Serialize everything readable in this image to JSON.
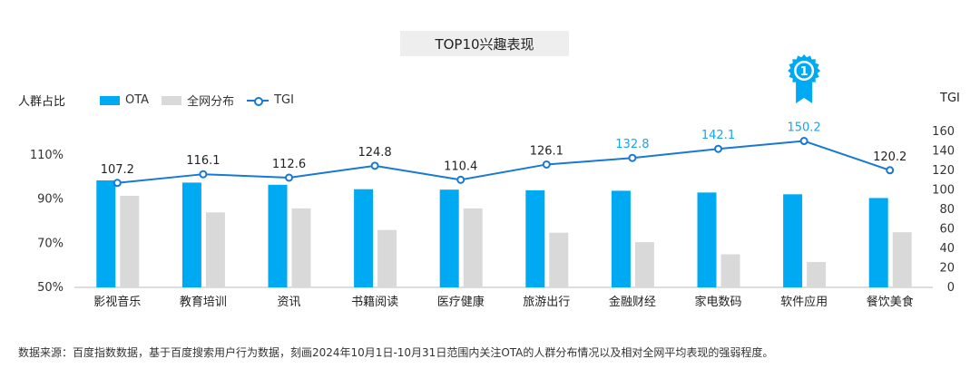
{
  "chart_data": {
    "type": "bar",
    "title": "TOP10兴趣表现",
    "categories": [
      "影视音乐",
      "教育培训",
      "资讯",
      "书籍阅读",
      "医疗健康",
      "旅游出行",
      "金融财经",
      "家电数码",
      "软件应用",
      "餐饮美食"
    ],
    "series": [
      {
        "name": "OTA",
        "type": "bar",
        "axis": "left",
        "values": [
          98.5,
          97.5,
          96.5,
          94.5,
          94.3,
          94.0,
          93.8,
          93.0,
          92.2,
          90.5
        ]
      },
      {
        "name": "全网分布",
        "type": "bar",
        "axis": "left",
        "values": [
          91.5,
          84.0,
          85.8,
          76.0,
          85.8,
          74.8,
          70.5,
          65.0,
          61.5,
          75.0
        ]
      },
      {
        "name": "TGI",
        "type": "line",
        "axis": "right",
        "values": [
          107.2,
          116.1,
          112.6,
          124.8,
          110.4,
          126.1,
          132.8,
          142.1,
          150.2,
          120.2
        ]
      }
    ],
    "tgi_labels": [
      "107.2",
      "116.1",
      "112.6",
      "124.8",
      "110.4",
      "126.1",
      "132.8",
      "142.1",
      "150.2",
      "120.2"
    ],
    "highlight_indices": [
      6,
      7,
      8
    ],
    "top_rank_index": 8,
    "top_rank_badge": "1",
    "ylabel": "人群占比",
    "ylabel_right": "TGI",
    "ylim": [
      50,
      115
    ],
    "yticks": [
      50,
      70,
      90,
      110
    ],
    "ytick_labels": [
      "50%",
      "70%",
      "90%",
      "110%"
    ],
    "ylim_right": [
      0,
      160
    ],
    "yticks_right": [
      0,
      20,
      40,
      60,
      80,
      100,
      120,
      140,
      160
    ],
    "yticks_right_labels": [
      "0",
      "20",
      "40",
      "60",
      "80",
      "100",
      "120",
      "140",
      "160"
    ],
    "legend": [
      "OTA",
      "全网分布",
      "TGI"
    ],
    "legend_position": "top-left",
    "grid": false
  },
  "colors": {
    "ota": "#00aaf2",
    "overall": "#d9d9d9",
    "tgi_line": "#1778d6",
    "highlight_label": "#1aa3f0",
    "badge": "#00aaf2"
  },
  "footnote": "数据来源：百度指数数据，基于百度搜索用户行为数据，刻画2024年10月1日-10月31日范围内关注OTA的人群分布情况以及相对全网平均表现的强弱程度。"
}
